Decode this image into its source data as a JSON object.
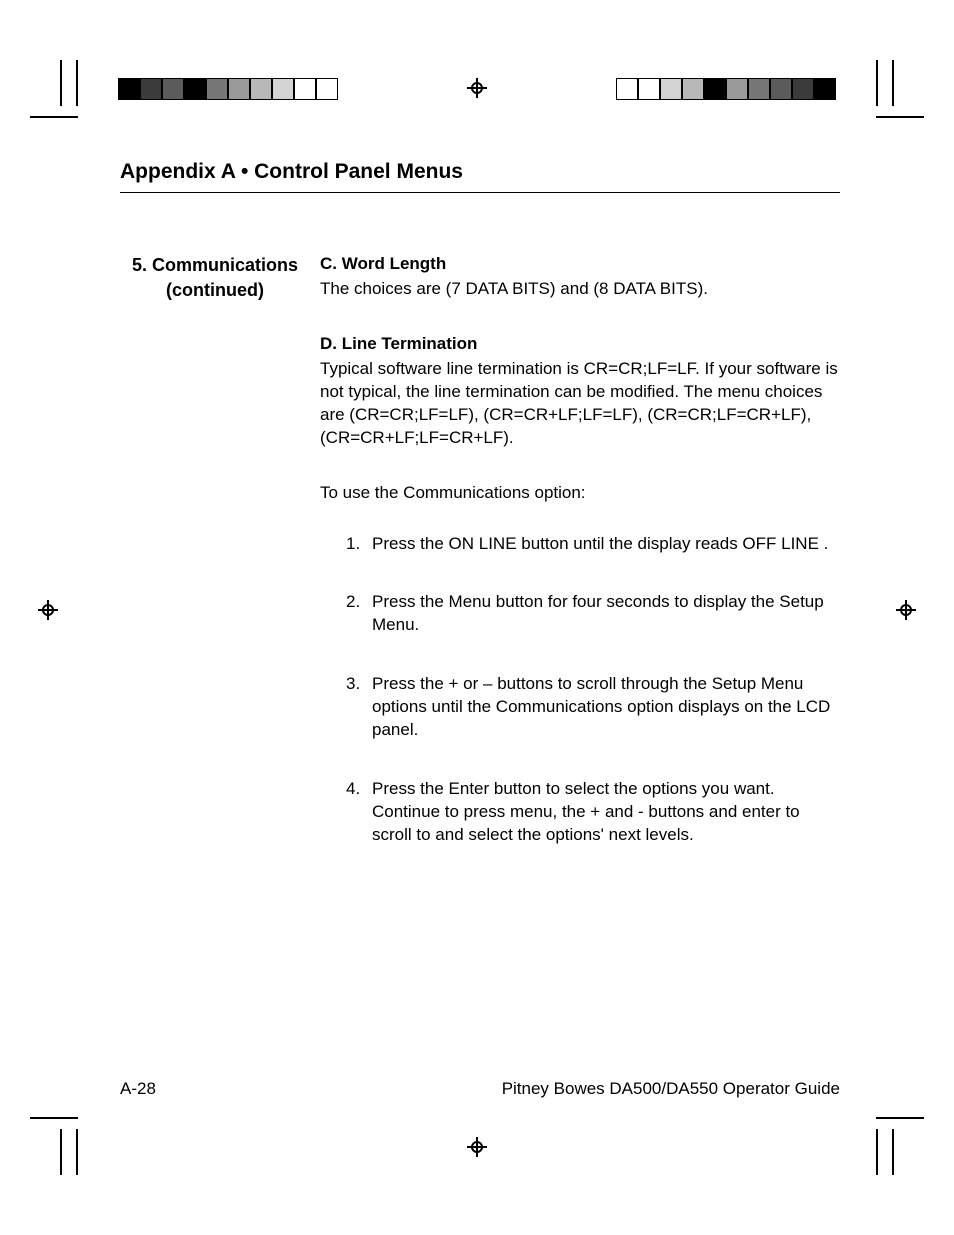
{
  "header": {
    "title": "Appendix A  •   Control Panel Menus"
  },
  "sidebar": {
    "title_line1": "5. Communications",
    "title_line2": "(continued)"
  },
  "sections": [
    {
      "heading": "C.  Word Length",
      "body": "The choices are (7 DATA BITS) and (8 DATA BITS)."
    },
    {
      "heading": "D.  Line Termination",
      "body": "Typical software line termination is CR=CR;LF=LF. If your software is not typical, the line termination can be modified. The menu choices are (CR=CR;LF=LF), (CR=CR+LF;LF=LF), (CR=CR;LF=CR+LF), (CR=CR+LF;LF=CR+LF)."
    }
  ],
  "intro": "To use the Communications option:",
  "steps": [
    "Press the ON LINE button until the display reads OFF LINE .",
    "Press the Menu button for four seconds to display the Setup Menu.",
    "Press the + or – buttons to scroll through the Setup Menu options until the Communications option displays  on the LCD panel.",
    "Press the Enter button to select the options you want. Continue to press menu, the + and - buttons and enter to scroll to and select the options' next levels."
  ],
  "footer": {
    "page_num": "A-28",
    "doc_title": "Pitney Bowes DA500/DA550 Operator Guide"
  },
  "colorbar_left": [
    "#000000",
    "#3b3b3b",
    "#5b5b5b",
    "#000000",
    "#777777",
    "#9a9a9a",
    "#b8b8b8",
    "#d4d4d4",
    "#ffffff",
    "#ffffff"
  ],
  "colorbar_right": [
    "#ffffff",
    "#ffffff",
    "#d4d4d4",
    "#b8b8b8",
    "#000000",
    "#9a9a9a",
    "#777777",
    "#5b5b5b",
    "#3b3b3b",
    "#000000"
  ],
  "colorbar_border": "#000000"
}
